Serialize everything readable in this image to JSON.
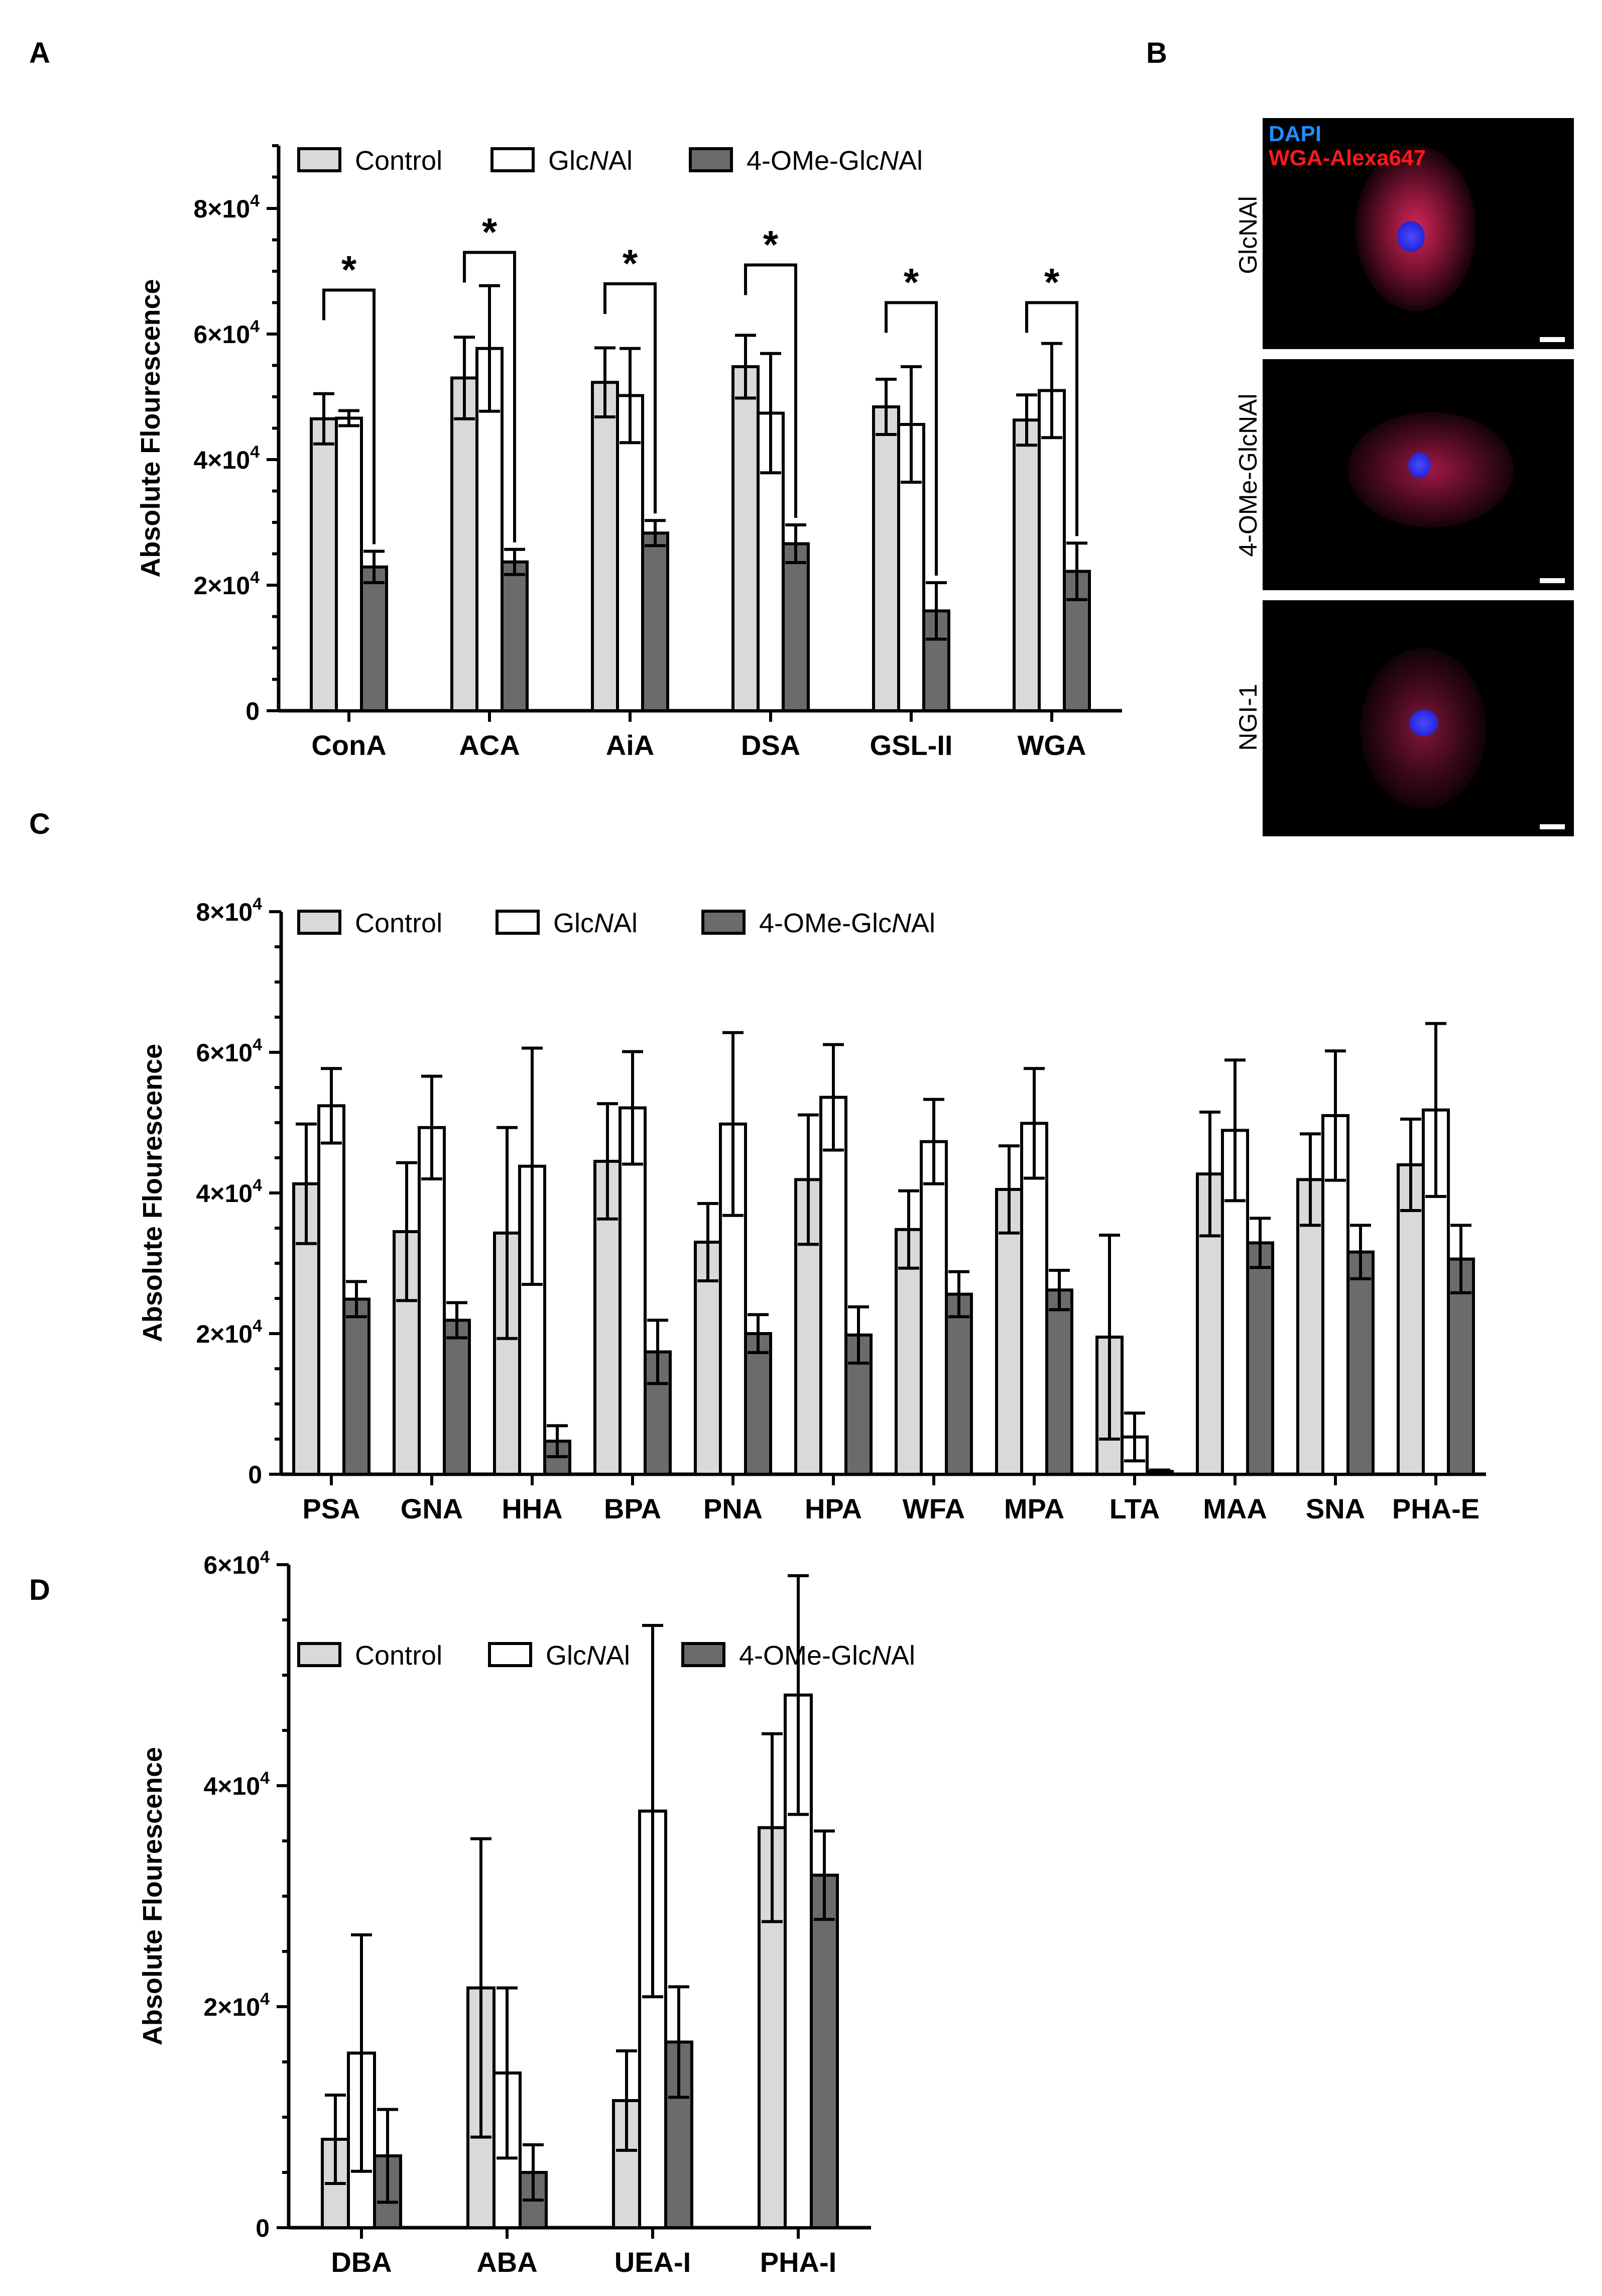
{
  "panel_labels": {
    "a": "A",
    "b": "B",
    "c": "C",
    "d": "D"
  },
  "colors": {
    "control": "#d9d9d9",
    "glcnal": "#ffffff",
    "ome": "#6b6b6b",
    "axis": "#000000",
    "dapi": "#1e8fff",
    "wga": "#ff1a1a"
  },
  "microscopy": {
    "legend_dapi": "DAPI",
    "legend_wga": "WGA-Alexa647",
    "rows": [
      {
        "label": "GlcNAl"
      },
      {
        "label": "4-OMe-GlcNAl"
      },
      {
        "label": "NGI-1"
      }
    ]
  },
  "chart_data": [
    {
      "panel": "A",
      "type": "bar",
      "ylabel": "Absolute Flourescence",
      "xlabel": "",
      "ylim": [
        0,
        90000
      ],
      "yticks": [
        0,
        20000,
        40000,
        60000,
        80000
      ],
      "ytick_labels": [
        {
          "base": "0",
          "exp": ""
        },
        {
          "base": "2×10",
          "exp": "4"
        },
        {
          "base": "4×10",
          "exp": "4"
        },
        {
          "base": "6×10",
          "exp": "4"
        },
        {
          "base": "8×10",
          "exp": "4"
        }
      ],
      "legend_position": "top",
      "categories": [
        "ConA",
        "ACA",
        "AiA",
        "DSA",
        "GSL-II",
        "WGA"
      ],
      "series": [
        {
          "name": "Control",
          "values": [
            46500,
            53000,
            52300,
            54800,
            48400,
            46300
          ],
          "errors": [
            4000,
            6500,
            5500,
            5000,
            4400,
            4000
          ]
        },
        {
          "name": "GlcNAl",
          "values": [
            46600,
            57700,
            50200,
            47400,
            45600,
            51000
          ],
          "errors": [
            1200,
            10000,
            7500,
            9500,
            9200,
            7500
          ]
        },
        {
          "name": "4-OMe-GlcNAl",
          "values": [
            22900,
            23700,
            28300,
            26600,
            15900,
            22200
          ],
          "errors": [
            2500,
            2000,
            2000,
            3000,
            4500,
            4500
          ]
        }
      ],
      "significance": {
        "label": "*",
        "pairs": [
          [
            0,
            2
          ],
          [
            0,
            2
          ],
          [
            0,
            2
          ],
          [
            0,
            2
          ],
          [
            0,
            2
          ],
          [
            0,
            2
          ]
        ],
        "heights": [
          67000,
          73000,
          68000,
          71000,
          65000,
          65000
        ]
      }
    },
    {
      "panel": "C",
      "type": "bar",
      "ylabel": "Absolute Flourescence",
      "xlabel": "",
      "ylim": [
        0,
        80000
      ],
      "yticks": [
        0,
        20000,
        40000,
        60000,
        80000
      ],
      "ytick_labels": [
        {
          "base": "0",
          "exp": ""
        },
        {
          "base": "2×10",
          "exp": "4"
        },
        {
          "base": "4×10",
          "exp": "4"
        },
        {
          "base": "6×10",
          "exp": "4"
        },
        {
          "base": "8×10",
          "exp": "4"
        }
      ],
      "legend_position": "top",
      "categories": [
        "PSA",
        "GNA",
        "HHA",
        "BPA",
        "PNA",
        "HPA",
        "WFA",
        "MPA",
        "LTA",
        "MAA",
        "SNA",
        "PHA-E"
      ],
      "series": [
        {
          "name": "Control",
          "values": [
            41300,
            34500,
            34300,
            44500,
            33000,
            41900,
            34800,
            40500,
            19500,
            42700,
            41900,
            44000
          ],
          "errors": [
            8500,
            9800,
            15000,
            8200,
            5500,
            9200,
            5500,
            6200,
            14500,
            8800,
            6500,
            6500
          ]
        },
        {
          "name": "GlcNAl",
          "values": [
            52400,
            49300,
            43800,
            52100,
            49800,
            53600,
            47300,
            49900,
            5300,
            48900,
            51000,
            51800
          ],
          "errors": [
            5300,
            7300,
            16800,
            8000,
            13000,
            7500,
            6000,
            7800,
            3400,
            10000,
            9200,
            12300
          ]
        },
        {
          "name": "4-OMe-GlcNAl",
          "values": [
            24900,
            21900,
            4700,
            17400,
            20000,
            19800,
            25600,
            26200,
            400,
            32900,
            31600,
            30600
          ],
          "errors": [
            2500,
            2500,
            2200,
            4500,
            2700,
            4000,
            3200,
            2800,
            200,
            3500,
            3800,
            4800
          ]
        }
      ]
    },
    {
      "panel": "D",
      "type": "bar",
      "ylabel": "Absolute Flourescence",
      "xlabel": "",
      "ylim": [
        0,
        60000
      ],
      "yticks": [
        0,
        20000,
        40000,
        60000
      ],
      "ytick_labels": [
        {
          "base": "0",
          "exp": ""
        },
        {
          "base": "2×10",
          "exp": "4"
        },
        {
          "base": "4×10",
          "exp": "4"
        },
        {
          "base": "6×10",
          "exp": "4"
        }
      ],
      "legend_position": "top",
      "categories": [
        "DBA",
        "ABA",
        "UEA-I",
        "PHA-I"
      ],
      "series": [
        {
          "name": "Control",
          "values": [
            8000,
            21700,
            11500,
            36200
          ],
          "errors": [
            4000,
            13500,
            4500,
            8500
          ]
        },
        {
          "name": "GlcNAl",
          "values": [
            15800,
            14000,
            37700,
            48200
          ],
          "errors": [
            10700,
            7700,
            16800,
            10800
          ]
        },
        {
          "name": "4-OMe-GlcNAl",
          "values": [
            6500,
            5000,
            16800,
            31900
          ],
          "errors": [
            4200,
            2500,
            5000,
            4000
          ]
        }
      ]
    }
  ]
}
